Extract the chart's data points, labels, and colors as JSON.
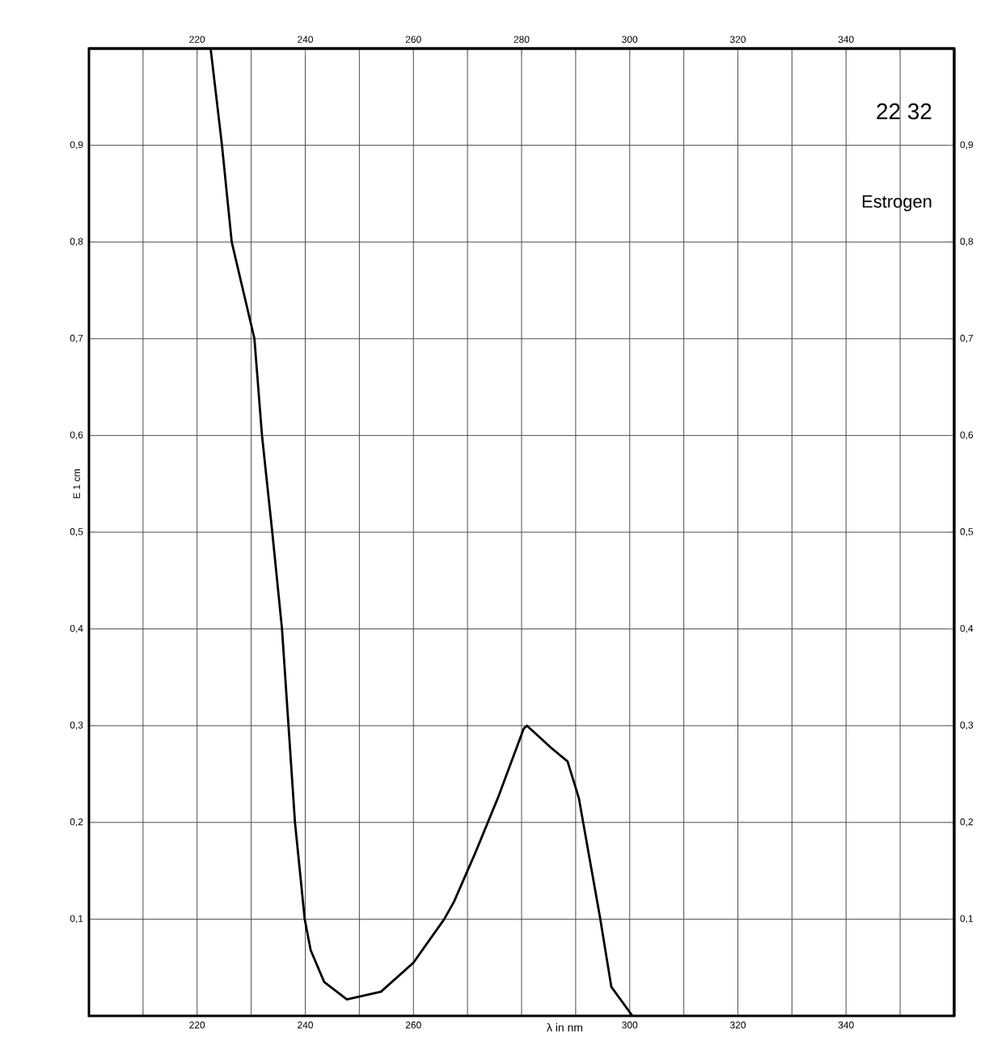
{
  "chart_data": {
    "type": "line",
    "xlabel": "λ in nm",
    "ylabel": "E 1 cm",
    "annotations": [
      "22 32",
      "Estrogen"
    ],
    "x": [
      222.5,
      224.6,
      226.4,
      230.6,
      232,
      233.9,
      235.7,
      236.9,
      238.1,
      239.9,
      241,
      243.5,
      247.7,
      254,
      260,
      265.7,
      267.5,
      271.4,
      275.6,
      280.4,
      281,
      285.5,
      288.5,
      290.6,
      292.4,
      294.5,
      296.6,
      300.5
    ],
    "values": [
      1.0,
      0.9,
      0.8,
      0.7,
      0.6,
      0.5,
      0.4,
      0.3,
      0.2,
      0.1,
      0.068,
      0.035,
      0.017,
      0.025,
      0.055,
      0.1,
      0.118,
      0.168,
      0.225,
      0.297,
      0.3,
      0.277,
      0.263,
      0.225,
      0.168,
      0.102,
      0.03,
      0.0
    ],
    "color": "#000000",
    "marker": "none",
    "line_style": "solid",
    "grid": true,
    "xlim": [
      200,
      360
    ],
    "ylim": [
      0,
      1
    ],
    "x2lim": [
      200,
      360
    ],
    "y2lim": [
      0,
      1
    ],
    "xticks": [
      {
        "value": 210,
        "label": null
      },
      {
        "value": 220,
        "label": "220"
      },
      {
        "value": 230,
        "label": null
      },
      {
        "value": 240,
        "label": "240"
      },
      {
        "value": 250,
        "label": null
      },
      {
        "value": 260,
        "label": "260"
      },
      {
        "value": 270,
        "label": null
      },
      {
        "value": 280,
        "label": null
      },
      {
        "value": 290,
        "label": null
      },
      {
        "value": 300,
        "label": "300"
      },
      {
        "value": 310,
        "label": null
      },
      {
        "value": 320,
        "label": "320"
      },
      {
        "value": 330,
        "label": null
      },
      {
        "value": 340,
        "label": "340"
      },
      {
        "value": 350,
        "label": null
      }
    ],
    "x2ticks": [
      220,
      240,
      260,
      280,
      300,
      320,
      340
    ],
    "yticks": [
      {
        "value": 0.1,
        "label": "0,1"
      },
      {
        "value": 0.2,
        "label": "0,2"
      },
      {
        "value": 0.3,
        "label": "0,3"
      },
      {
        "value": 0.4,
        "label": "0,4"
      },
      {
        "value": 0.5,
        "label": "0,5"
      },
      {
        "value": 0.6,
        "label": "0,6"
      },
      {
        "value": 0.7,
        "label": "0,7"
      },
      {
        "value": 0.8,
        "label": "0,8"
      },
      {
        "value": 0.9,
        "label": "0,9"
      }
    ],
    "y2ticks": [
      {
        "value": 0.1,
        "label": "0,1"
      },
      {
        "value": 0.2,
        "label": "0,2"
      },
      {
        "value": 0.3,
        "label": "0,3"
      },
      {
        "value": 0.4,
        "label": "0,4"
      },
      {
        "value": 0.5,
        "label": "0,5"
      },
      {
        "value": 0.6,
        "label": "0,6"
      },
      {
        "value": 0.7,
        "label": "0,7"
      },
      {
        "value": 0.8,
        "label": "0,8"
      },
      {
        "value": 0.9,
        "label": "0,9"
      }
    ]
  }
}
